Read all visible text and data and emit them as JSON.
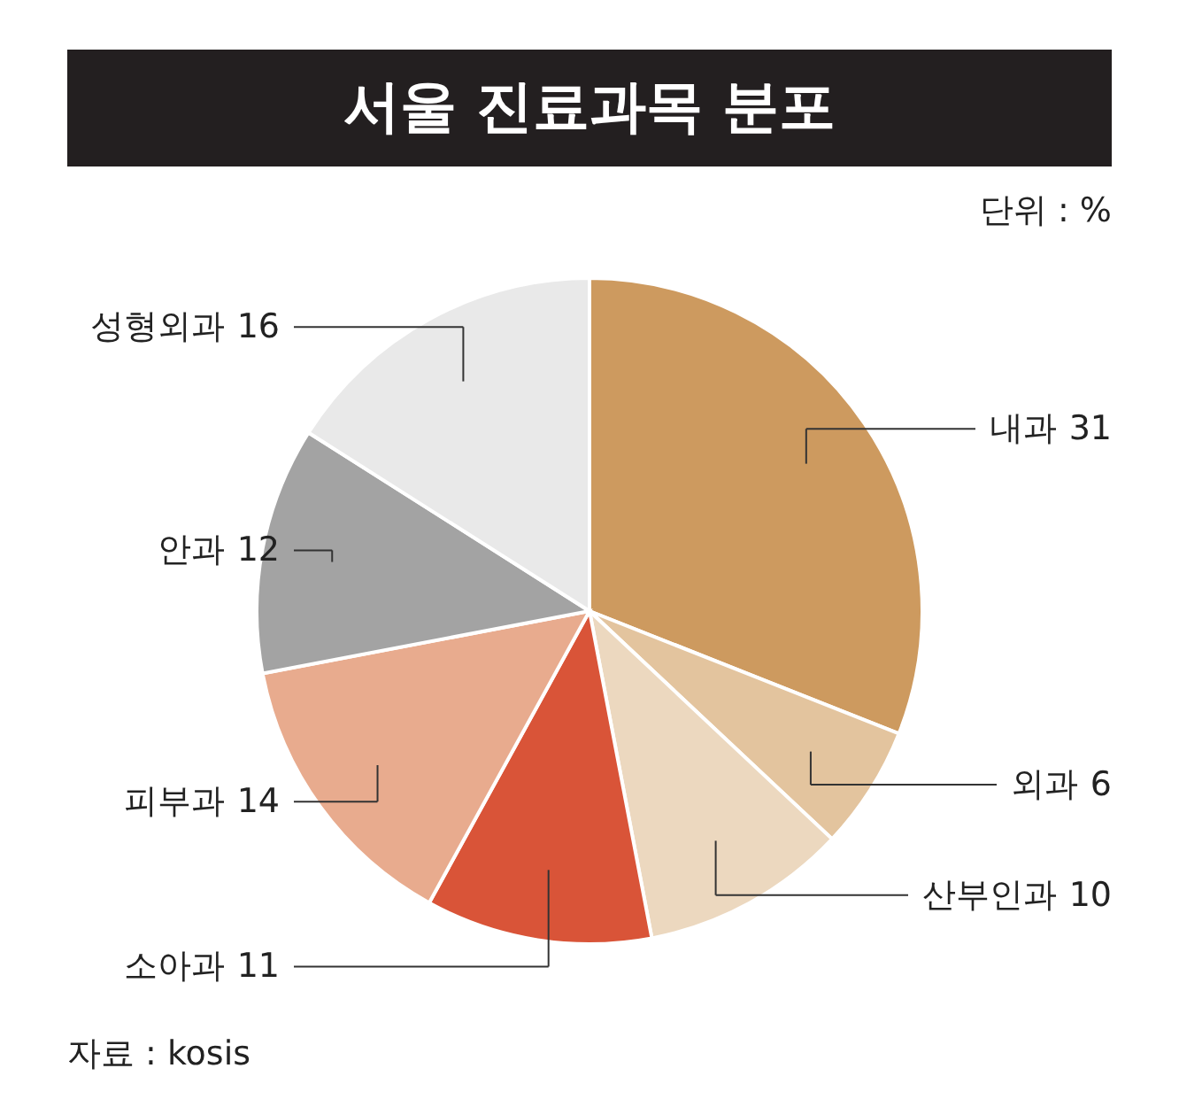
{
  "chart_data": {
    "type": "pie",
    "title": "서울 진료과목 분포",
    "subtitle": "단위 : %",
    "annotations": [
      "자료 : kosis"
    ],
    "categories": [
      "내과",
      "외과",
      "산부인과",
      "소아과",
      "피부과",
      "안과",
      "성형외과"
    ],
    "values": [
      31,
      6,
      10,
      11,
      14,
      12,
      16
    ],
    "colors": [
      "#cd9a5f",
      "#e3c49e",
      "#ecd8bf",
      "#d95438",
      "#e8ab8e",
      "#a3a3a3",
      "#e9e9e9"
    ],
    "data_labels": true
  }
}
